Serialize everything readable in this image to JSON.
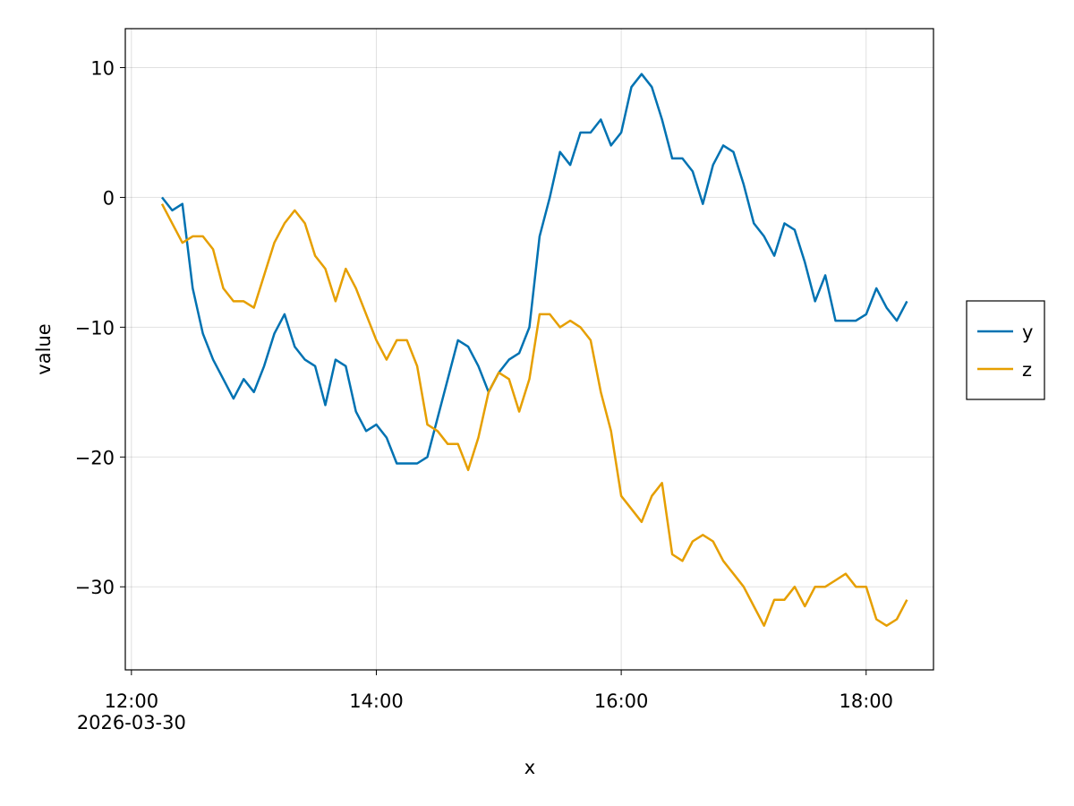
{
  "chart_data": {
    "type": "line",
    "x_label": "x",
    "y_label": "value",
    "x": [
      "2026-03-30T12:15",
      "2026-03-30T12:20",
      "2026-03-30T12:25",
      "2026-03-30T12:30",
      "2026-03-30T12:35",
      "2026-03-30T12:40",
      "2026-03-30T12:45",
      "2026-03-30T12:50",
      "2026-03-30T12:55",
      "2026-03-30T13:00",
      "2026-03-30T13:05",
      "2026-03-30T13:10",
      "2026-03-30T13:15",
      "2026-03-30T13:20",
      "2026-03-30T13:25",
      "2026-03-30T13:30",
      "2026-03-30T13:35",
      "2026-03-30T13:40",
      "2026-03-30T13:45",
      "2026-03-30T13:50",
      "2026-03-30T13:55",
      "2026-03-30T14:00",
      "2026-03-30T14:05",
      "2026-03-30T14:10",
      "2026-03-30T14:15",
      "2026-03-30T14:20",
      "2026-03-30T14:25",
      "2026-03-30T14:30",
      "2026-03-30T14:35",
      "2026-03-30T14:40",
      "2026-03-30T14:45",
      "2026-03-30T14:50",
      "2026-03-30T14:55",
      "2026-03-30T15:00",
      "2026-03-30T15:05",
      "2026-03-30T15:10",
      "2026-03-30T15:15",
      "2026-03-30T15:20",
      "2026-03-30T15:25",
      "2026-03-30T15:30",
      "2026-03-30T15:35",
      "2026-03-30T15:40",
      "2026-03-30T15:45",
      "2026-03-30T15:50",
      "2026-03-30T15:55",
      "2026-03-30T16:00",
      "2026-03-30T16:05",
      "2026-03-30T16:10",
      "2026-03-30T16:15",
      "2026-03-30T16:20",
      "2026-03-30T16:25",
      "2026-03-30T16:30",
      "2026-03-30T16:35",
      "2026-03-30T16:40",
      "2026-03-30T16:45",
      "2026-03-30T16:50",
      "2026-03-30T16:55",
      "2026-03-30T17:00",
      "2026-03-30T17:05",
      "2026-03-30T17:10",
      "2026-03-30T17:15",
      "2026-03-30T17:20",
      "2026-03-30T17:25",
      "2026-03-30T17:30",
      "2026-03-30T17:35",
      "2026-03-30T17:40",
      "2026-03-30T17:45",
      "2026-03-30T17:50",
      "2026-03-30T17:55",
      "2026-03-30T18:00",
      "2026-03-30T18:05",
      "2026-03-30T18:10",
      "2026-03-30T18:15",
      "2026-03-30T18:20"
    ],
    "series": [
      {
        "name": "y",
        "color": "#0072b2",
        "values": [
          0,
          -1,
          -0.5,
          -7,
          -10.5,
          -12.5,
          -14,
          -15.5,
          -14,
          -15,
          -13,
          -10.5,
          -9,
          -11.5,
          -12.5,
          -13,
          -16,
          -12.5,
          -13,
          -16.5,
          -18,
          -17.5,
          -18.5,
          -20.5,
          -20.5,
          -20.5,
          -20,
          -17,
          -14,
          -11,
          -11.5,
          -13,
          -15,
          -13.5,
          -12.5,
          -12,
          -10,
          -3,
          0,
          3.5,
          2.5,
          5,
          5,
          6,
          4,
          5,
          8.5,
          9.5,
          8.5,
          6,
          3,
          3,
          2,
          -0.5,
          2.5,
          4,
          3.5,
          1,
          -2,
          -3,
          -4.5,
          -2,
          -2.5,
          -5,
          -8,
          -6,
          -9.5,
          -9.5,
          -9.5,
          -9,
          -7,
          -8.5,
          -9.5,
          -8
        ]
      },
      {
        "name": "z",
        "color": "#e69f00",
        "values": [
          -0.5,
          -2,
          -3.5,
          -3,
          -3,
          -4,
          -7,
          -8,
          -8,
          -8.5,
          -6,
          -3.5,
          -2,
          -1,
          -2,
          -4.5,
          -5.5,
          -8,
          -5.5,
          -7,
          -9,
          -11,
          -12.5,
          -11,
          -11,
          -13,
          -17.5,
          -18,
          -19,
          -19,
          -21,
          -18.5,
          -15,
          -13.5,
          -14,
          -16.5,
          -14,
          -9,
          -9,
          -10,
          -9.5,
          -10,
          -11,
          -15,
          -18,
          -23,
          -24,
          -25,
          -23,
          -22,
          -27.5,
          -28,
          -26.5,
          -26,
          -26.5,
          -28,
          -29,
          -30,
          -31.5,
          -33,
          -31,
          -31,
          -30,
          -31.5,
          -30,
          -30,
          -29.5,
          -29,
          -30,
          -30,
          -32.5,
          -33,
          -32.5,
          -31
        ]
      }
    ],
    "xlim": [
      "2026-03-30T11:57",
      "2026-03-30T18:33"
    ],
    "xticks": [
      {
        "value": "2026-03-30T12:00",
        "label": "12:00\n2026-03-30"
      },
      {
        "value": "2026-03-30T14:00",
        "label": "14:00"
      },
      {
        "value": "2026-03-30T16:00",
        "label": "16:00"
      },
      {
        "value": "2026-03-30T18:00",
        "label": "18:00"
      }
    ],
    "ylim": [
      -36.4,
      13
    ],
    "yticks": [
      {
        "value": -30,
        "label": "−30"
      },
      {
        "value": -20,
        "label": "−20"
      },
      {
        "value": -10,
        "label": "−10"
      },
      0,
      10
    ],
    "grid": true,
    "legend": "right"
  }
}
